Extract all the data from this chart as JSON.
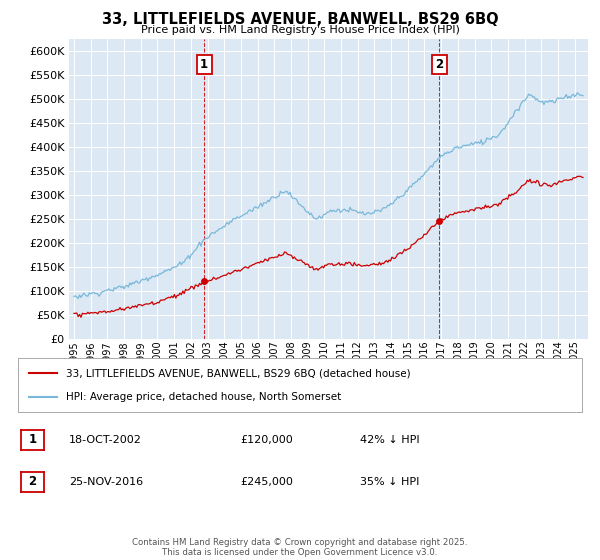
{
  "title_line1": "33, LITTLEFIELDS AVENUE, BANWELL, BS29 6BQ",
  "title_line2": "Price paid vs. HM Land Registry's House Price Index (HPI)",
  "hpi_color": "#7ab8d9",
  "price_color": "#cc0000",
  "sale1_date_num": 2002.8,
  "sale1_price": 120000,
  "sale2_date_num": 2016.9,
  "sale2_price": 245000,
  "legend_label_price": "33, LITTLEFIELDS AVENUE, BANWELL, BS29 6BQ (detached house)",
  "legend_label_hpi": "HPI: Average price, detached house, North Somerset",
  "footnote": "Contains HM Land Registry data © Crown copyright and database right 2025.\nThis data is licensed under the Open Government Licence v3.0.",
  "background_color": "#dce9f5",
  "ylim": [
    0,
    625000
  ],
  "xlim_start": 1994.7,
  "xlim_end": 2025.8
}
